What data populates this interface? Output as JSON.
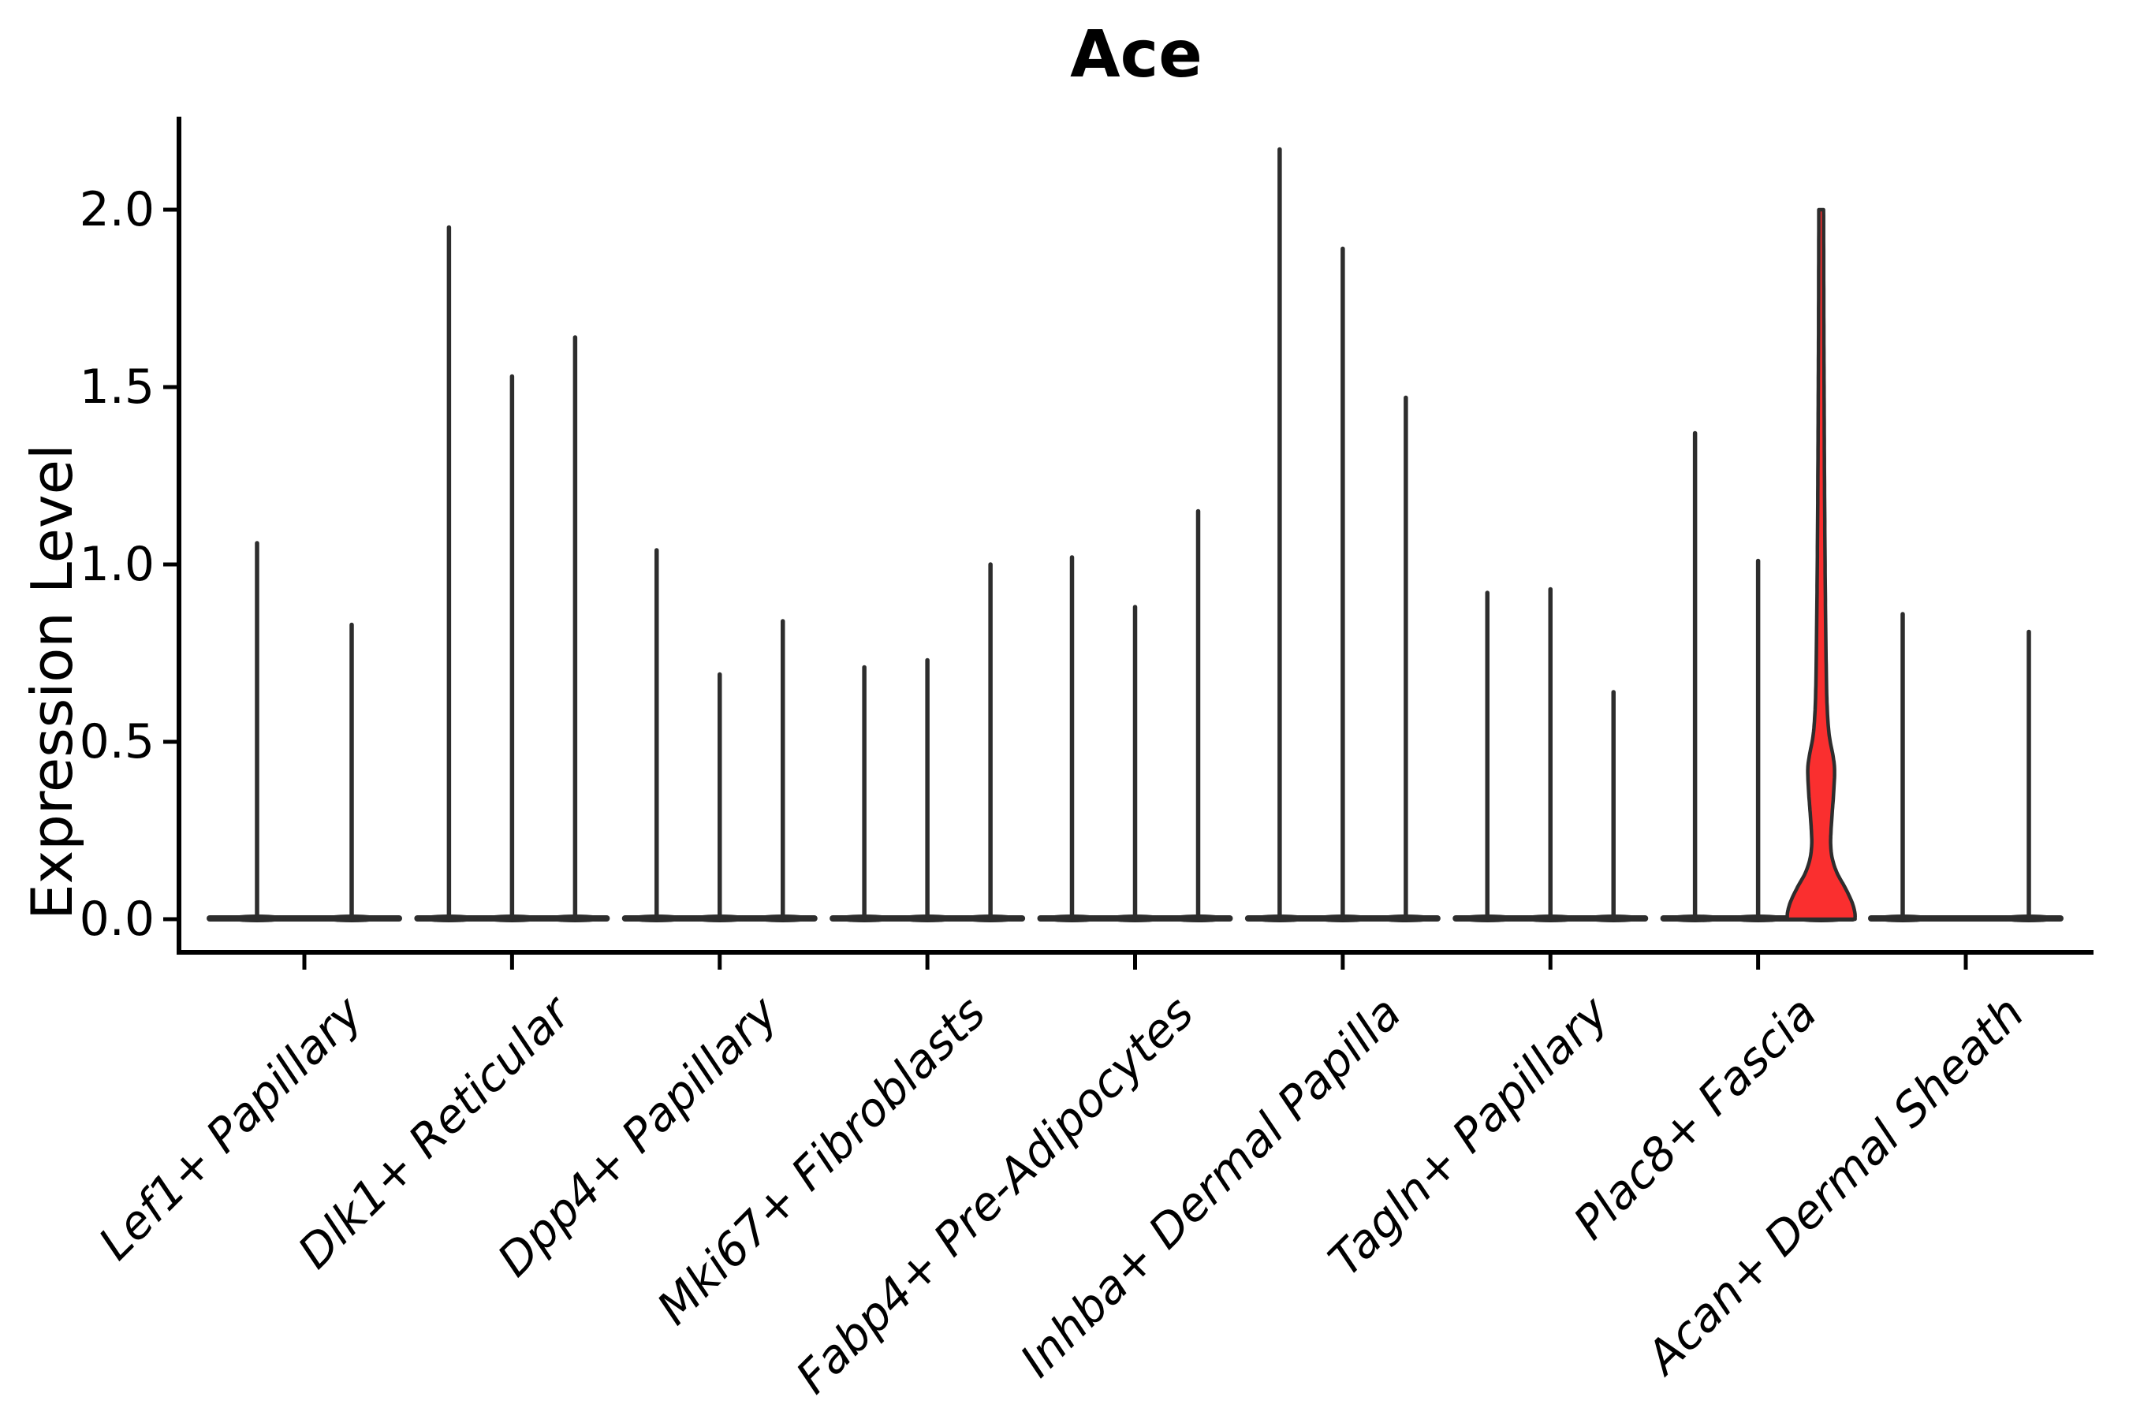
{
  "chart_data": {
    "type": "violin",
    "title": "Ace",
    "xlabel": "",
    "ylabel": "Expression Level",
    "grid": false,
    "legend_position": "none",
    "ytick_labels": [
      "0.0",
      "0.5",
      "1.0",
      "1.5",
      "2.0"
    ],
    "ytick_values": [
      0.0,
      0.5,
      1.0,
      1.5,
      2.0
    ],
    "ylim": [
      -0.09,
      2.26
    ],
    "categories": [
      "Lef1+ Papillary",
      "Dlk1+ Reticular",
      "Dpp4+ Papillary",
      "Mki67+ Fibroblasts",
      "Fabp4+ Pre-Adipocytes",
      "Inhba+ Dermal Papilla",
      "Tagln+ Papillary",
      "Plac8+ Fascia",
      "Acan+ Dermal Sheath"
    ],
    "series": [
      {
        "category": "Lef1+ Papillary",
        "slots": 2,
        "violins": [
          {
            "slot": 0,
            "max": 1.06
          },
          {
            "slot": 1,
            "max": 0.83
          }
        ]
      },
      {
        "category": "Dlk1+ Reticular",
        "slots": 3,
        "violins": [
          {
            "slot": 0,
            "max": 1.95
          },
          {
            "slot": 1,
            "max": 1.53
          },
          {
            "slot": 2,
            "max": 1.64
          }
        ]
      },
      {
        "category": "Dpp4+ Papillary",
        "slots": 3,
        "violins": [
          {
            "slot": 0,
            "max": 1.04
          },
          {
            "slot": 1,
            "max": 0.69
          },
          {
            "slot": 2,
            "max": 0.84
          }
        ]
      },
      {
        "category": "Mki67+ Fibroblasts",
        "slots": 3,
        "violins": [
          {
            "slot": 0,
            "max": 0.71
          },
          {
            "slot": 1,
            "max": 0.73
          },
          {
            "slot": 2,
            "max": 1.0
          }
        ]
      },
      {
        "category": "Fabp4+ Pre-Adipocytes",
        "slots": 3,
        "violins": [
          {
            "slot": 0,
            "max": 1.02
          },
          {
            "slot": 1,
            "max": 0.88
          },
          {
            "slot": 2,
            "max": 1.15
          }
        ]
      },
      {
        "category": "Inhba+ Dermal Papilla",
        "slots": 3,
        "violins": [
          {
            "slot": 0,
            "max": 2.17
          },
          {
            "slot": 1,
            "max": 1.89
          },
          {
            "slot": 2,
            "max": 1.47
          }
        ]
      },
      {
        "category": "Tagln+ Papillary",
        "slots": 3,
        "violins": [
          {
            "slot": 0,
            "max": 0.92
          },
          {
            "slot": 1,
            "max": 0.93
          },
          {
            "slot": 2,
            "max": 0.64
          }
        ]
      },
      {
        "category": "Plac8+ Fascia",
        "slots": 3,
        "violins": [
          {
            "slot": 0,
            "max": 1.37
          },
          {
            "slot": 1,
            "max": 1.01
          },
          {
            "slot": 2,
            "max": 2.0,
            "highlighted": true
          }
        ]
      },
      {
        "category": "Acan+ Dermal Sheath",
        "slots": 3,
        "violins": [
          {
            "slot": 0,
            "max": 0.86
          },
          {
            "slot": 2,
            "max": 0.81
          }
        ]
      }
    ],
    "highlight_profile": [
      [
        2.0,
        0.07
      ],
      [
        1.8,
        0.075
      ],
      [
        1.6,
        0.08
      ],
      [
        1.4,
        0.09
      ],
      [
        1.2,
        0.1
      ],
      [
        1.0,
        0.115
      ],
      [
        0.85,
        0.13
      ],
      [
        0.7,
        0.15
      ],
      [
        0.6,
        0.175
      ],
      [
        0.52,
        0.235
      ],
      [
        0.46,
        0.35
      ],
      [
        0.42,
        0.395
      ],
      [
        0.36,
        0.37
      ],
      [
        0.3,
        0.325
      ],
      [
        0.25,
        0.29
      ],
      [
        0.21,
        0.28
      ],
      [
        0.17,
        0.33
      ],
      [
        0.13,
        0.47
      ],
      [
        0.09,
        0.7
      ],
      [
        0.05,
        0.9
      ],
      [
        0.02,
        0.99
      ],
      [
        0.0,
        1.0
      ]
    ],
    "colors": {
      "highlight_fill": "#fa2f2f",
      "violin_line": "#2d2d2d",
      "axis": "#000000",
      "background": "#ffffff"
    }
  }
}
